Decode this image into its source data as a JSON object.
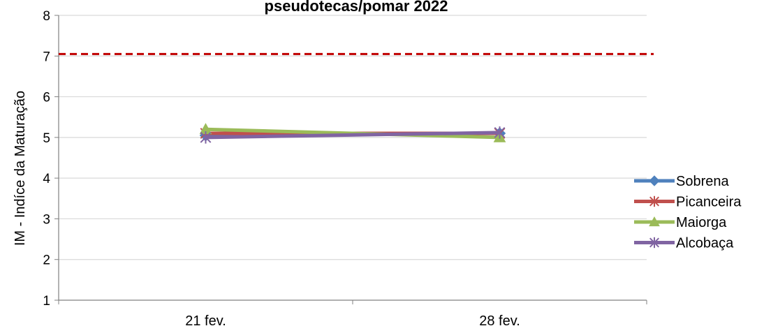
{
  "chart_data": {
    "type": "line",
    "title": "pseudotecas/pomar 2022",
    "xlabel": "",
    "ylabel": "IM - Indíce da Maturação",
    "categories": [
      "21 fev.",
      "28 fev."
    ],
    "ylim": [
      1,
      8
    ],
    "yticks": [
      "1",
      "2",
      "3",
      "4",
      "5",
      "6",
      "7",
      "8"
    ],
    "grid": true,
    "legend_position": "right",
    "reference_line": {
      "value": 7.05,
      "color": "#C00000",
      "style": "dashed"
    },
    "series": [
      {
        "name": "Sobrena",
        "values": [
          5.05,
          5.1
        ],
        "color": "#4F81BD",
        "marker": "diamond"
      },
      {
        "name": "Picanceira",
        "values": [
          5.1,
          5.1
        ],
        "color": "#C0504D",
        "marker": "star"
      },
      {
        "name": "Maiorga",
        "values": [
          5.2,
          5.0
        ],
        "color": "#9BBB59",
        "marker": "triangle"
      },
      {
        "name": "Alcobaça",
        "values": [
          5.0,
          5.12
        ],
        "color": "#8064A2",
        "marker": "star"
      }
    ]
  }
}
